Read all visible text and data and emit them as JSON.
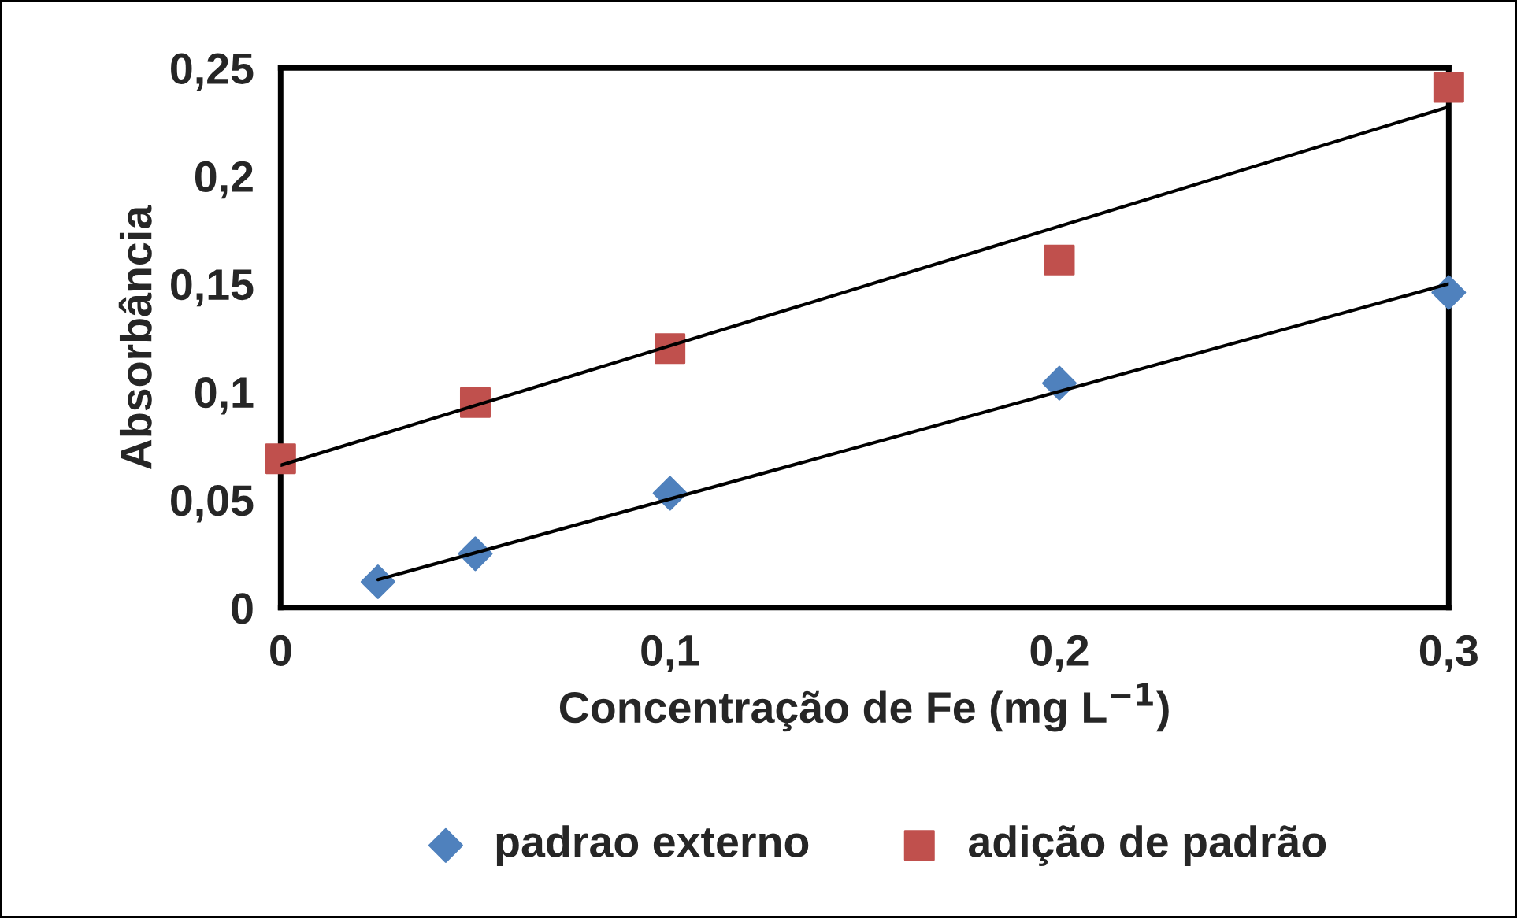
{
  "chart_data": {
    "type": "scatter",
    "xlabel": "Concentração de Fe (mg L$^{−1}$)",
    "ylabel": "Absorbância",
    "xlim": [
      0,
      0.3
    ],
    "ylim": [
      0,
      0.25
    ],
    "xticks": [
      {
        "value": 0,
        "label": "0"
      },
      {
        "value": 0.1,
        "label": "0,1"
      },
      {
        "value": 0.2,
        "label": "0,2"
      },
      {
        "value": 0.3,
        "label": "0,3"
      }
    ],
    "yticks": [
      {
        "value": 0,
        "label": "0"
      },
      {
        "value": 0.05,
        "label": "0,05"
      },
      {
        "value": 0.1,
        "label": "0,1"
      },
      {
        "value": 0.15,
        "label": "0,15"
      },
      {
        "value": 0.2,
        "label": "0,2"
      },
      {
        "value": 0.25,
        "label": "0,25"
      }
    ],
    "grid": false,
    "legend": "bottom",
    "series": [
      {
        "name": "padrao externo",
        "type": "scatter",
        "marker": "diamond",
        "color": "#4f81bd",
        "x": [
          0.025,
          0.05,
          0.1,
          0.2,
          0.3
        ],
        "values": [
          0.012,
          0.025,
          0.053,
          0.104,
          0.146
        ]
      },
      {
        "name": "adição de padrão",
        "type": "scatter",
        "marker": "square",
        "color": "#c0504d",
        "x": [
          0,
          0.05,
          0.1,
          0.2,
          0.3
        ],
        "values": [
          0.069,
          0.095,
          0.12,
          0.161,
          0.241
        ]
      },
      {
        "type": "line",
        "color": "#000000",
        "x": [
          0.025,
          0.3
        ],
        "values": [
          0.013,
          0.15
        ]
      },
      {
        "type": "line",
        "color": "#000000",
        "x": [
          0,
          0.3
        ],
        "values": [
          0.066,
          0.232
        ]
      }
    ]
  }
}
